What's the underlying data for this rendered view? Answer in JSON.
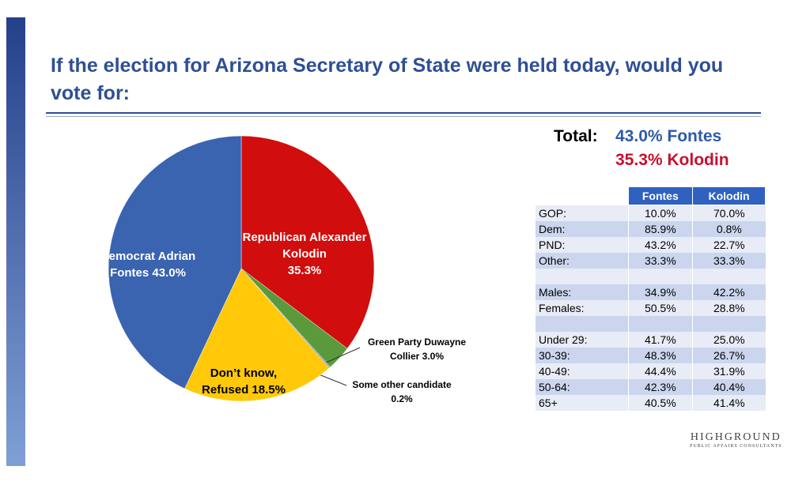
{
  "chart_data": {
    "type": "pie",
    "title": "If the election for Arizona Secretary of State were held today, would you vote for:",
    "categories": [
      "Republican Alexander Kolodin",
      "Green Party Duwayne Collier",
      "Some other candidate",
      "Don’t know, Refused",
      "Democrat Adrian Fontes"
    ],
    "values": [
      35.3,
      3.0,
      0.2,
      18.5,
      43.0
    ],
    "value_labels": [
      "35.3%",
      "3.0%",
      "0.2%",
      "18.5%",
      "43.0%"
    ],
    "colors": [
      "#d10d0d",
      "#5a9a3c",
      "#9b9b9b",
      "#ffc90a",
      "#3a63b0"
    ]
  },
  "total": {
    "label": "Total:",
    "lines": [
      "43.0% Fontes",
      "35.3% Kolodin"
    ]
  },
  "table": {
    "columns": [
      "Fontes",
      "Kolodin"
    ],
    "groups": [
      [
        [
          "GOP:",
          "10.0%",
          "70.0%"
        ],
        [
          "Dem:",
          "85.9%",
          "0.8%"
        ],
        [
          "PND:",
          "43.2%",
          "22.7%"
        ],
        [
          "Other:",
          "33.3%",
          "33.3%"
        ]
      ],
      [
        [
          "Males:",
          "34.9%",
          "42.2%"
        ],
        [
          "Females:",
          "50.5%",
          "28.8%"
        ]
      ],
      [
        [
          "Under 29:",
          "41.7%",
          "25.0%"
        ],
        [
          "30-39:",
          "48.3%",
          "26.7%"
        ],
        [
          "40-49:",
          "44.4%",
          "31.9%"
        ],
        [
          "50-64:",
          "42.3%",
          "40.4%"
        ],
        [
          "65+",
          "40.5%",
          "41.4%"
        ]
      ]
    ]
  },
  "logo": {
    "name": "HIGHGROUND",
    "tagline": "PUBLIC AFFAIRS CONSULTANTS"
  }
}
